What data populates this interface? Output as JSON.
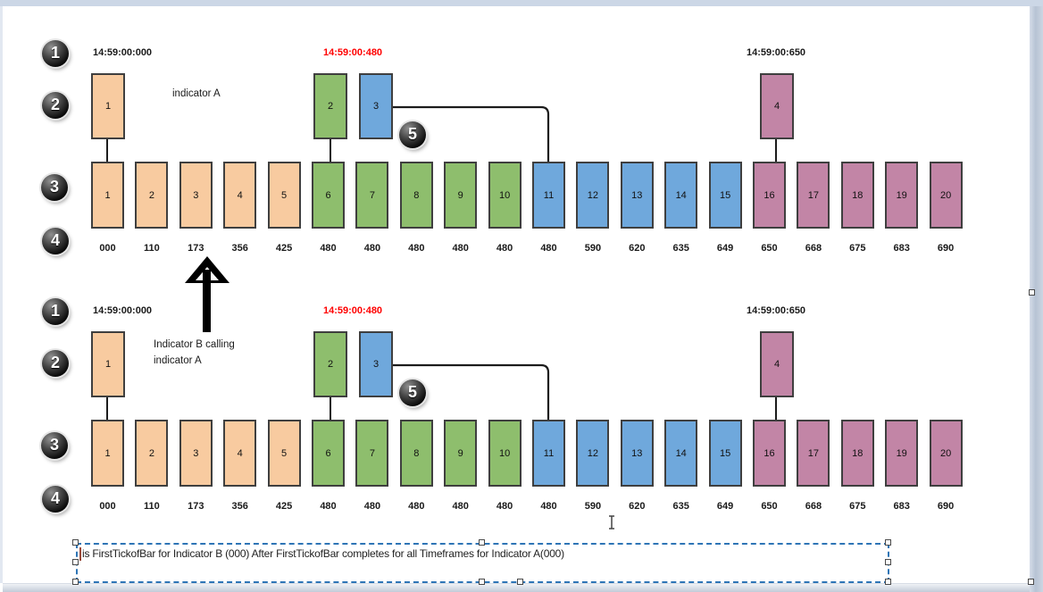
{
  "palette": {
    "orange": "#F8CBA0",
    "green": "#8EBE6D",
    "blue": "#6FA8DC",
    "purple": "#C285A6",
    "bar_border": "#3F3F3F",
    "red_text": "#FF0000",
    "selection_blue": "#2E75B6",
    "frame": "#CCD7E6"
  },
  "diagrams": [
    {
      "name": "indicator-a",
      "label": "indicator A",
      "timestamps": [
        {
          "text": "14:59:00:000",
          "color": "#1A1A1A"
        },
        {
          "text": "14:59:00:480",
          "color": "#FF0000"
        },
        {
          "text": "14:59:00:650",
          "color": "#1A1A1A"
        }
      ],
      "callouts": {
        "c1": "1",
        "c2": "2",
        "c3": "3",
        "c4": "4",
        "c5": "5"
      },
      "top_boxes": [
        {
          "num": "1",
          "color": "orange"
        },
        {
          "num": "2",
          "color": "green"
        },
        {
          "num": "3",
          "color": "blue"
        },
        {
          "num": "4",
          "color": "purple"
        }
      ],
      "bars": [
        {
          "num": "1",
          "color": "orange",
          "value": "000",
          "red": false
        },
        {
          "num": "2",
          "color": "orange",
          "value": "110",
          "red": false
        },
        {
          "num": "3",
          "color": "orange",
          "value": "173",
          "red": false
        },
        {
          "num": "4",
          "color": "orange",
          "value": "356",
          "red": false
        },
        {
          "num": "5",
          "color": "orange",
          "value": "425",
          "red": false
        },
        {
          "num": "6",
          "color": "green",
          "value": "480",
          "red": true
        },
        {
          "num": "7",
          "color": "green",
          "value": "480",
          "red": true
        },
        {
          "num": "8",
          "color": "green",
          "value": "480",
          "red": true
        },
        {
          "num": "9",
          "color": "green",
          "value": "480",
          "red": true
        },
        {
          "num": "10",
          "color": "green",
          "value": "480",
          "red": true
        },
        {
          "num": "11",
          "color": "blue",
          "value": "480",
          "red": true
        },
        {
          "num": "12",
          "color": "blue",
          "value": "590",
          "red": false
        },
        {
          "num": "13",
          "color": "blue",
          "value": "620",
          "red": false
        },
        {
          "num": "14",
          "color": "blue",
          "value": "635",
          "red": false
        },
        {
          "num": "15",
          "color": "blue",
          "value": "649",
          "red": false
        },
        {
          "num": "16",
          "color": "purple",
          "value": "650",
          "red": false
        },
        {
          "num": "17",
          "color": "purple",
          "value": "668",
          "red": false
        },
        {
          "num": "18",
          "color": "purple",
          "value": "675",
          "red": false
        },
        {
          "num": "19",
          "color": "purple",
          "value": "683",
          "red": false
        },
        {
          "num": "20",
          "color": "purple",
          "value": "690",
          "red": false
        }
      ]
    },
    {
      "name": "indicator-b",
      "label": "Indicator B calling\nindicator A",
      "timestamps": [
        {
          "text": "14:59:00:000",
          "color": "#1A1A1A"
        },
        {
          "text": "14:59:00:480",
          "color": "#FF0000"
        },
        {
          "text": "14:59:00:650",
          "color": "#1A1A1A"
        }
      ],
      "callouts": {
        "c1": "1",
        "c2": "2",
        "c3": "3",
        "c4": "4",
        "c5": "5"
      },
      "top_boxes": [
        {
          "num": "1",
          "color": "orange"
        },
        {
          "num": "2",
          "color": "green"
        },
        {
          "num": "3",
          "color": "blue"
        },
        {
          "num": "4",
          "color": "purple"
        }
      ],
      "bars": [
        {
          "num": "1",
          "color": "orange",
          "value": "000",
          "red": false
        },
        {
          "num": "2",
          "color": "orange",
          "value": "110",
          "red": false
        },
        {
          "num": "3",
          "color": "orange",
          "value": "173",
          "red": false
        },
        {
          "num": "4",
          "color": "orange",
          "value": "356",
          "red": false
        },
        {
          "num": "5",
          "color": "orange",
          "value": "425",
          "red": false
        },
        {
          "num": "6",
          "color": "green",
          "value": "480",
          "red": true
        },
        {
          "num": "7",
          "color": "green",
          "value": "480",
          "red": true
        },
        {
          "num": "8",
          "color": "green",
          "value": "480",
          "red": true
        },
        {
          "num": "9",
          "color": "green",
          "value": "480",
          "red": true
        },
        {
          "num": "10",
          "color": "green",
          "value": "480",
          "red": true
        },
        {
          "num": "11",
          "color": "blue",
          "value": "480",
          "red": true
        },
        {
          "num": "12",
          "color": "blue",
          "value": "590",
          "red": false
        },
        {
          "num": "13",
          "color": "blue",
          "value": "620",
          "red": false
        },
        {
          "num": "14",
          "color": "blue",
          "value": "635",
          "red": false
        },
        {
          "num": "15",
          "color": "blue",
          "value": "649",
          "red": false
        },
        {
          "num": "16",
          "color": "purple",
          "value": "650",
          "red": false
        },
        {
          "num": "17",
          "color": "purple",
          "value": "668",
          "red": false
        },
        {
          "num": "18",
          "color": "purple",
          "value": "675",
          "red": false
        },
        {
          "num": "19",
          "color": "purple",
          "value": "683",
          "red": false
        },
        {
          "num": "20",
          "color": "purple",
          "value": "690",
          "red": false
        }
      ]
    }
  ],
  "note_box": {
    "text": "is FirstTickofBar for Indicator B (000) After FirstTickofBar completes for all Timeframes for Indicator A(000)"
  }
}
